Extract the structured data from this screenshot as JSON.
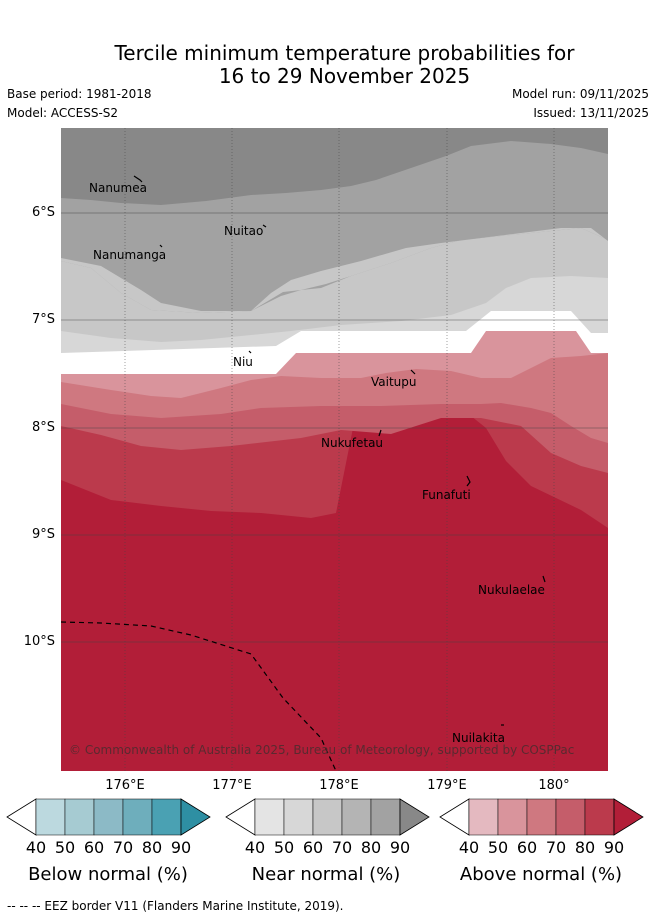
{
  "title_line1": "Tercile minimum temperature probabilities for",
  "title_line2": "16 to 29 November 2025",
  "base_period": "Base period: 1981-2018",
  "model": "Model: ACCESS-S2",
  "model_run": "Model run: 09/11/2025",
  "issued": "Issued: 13/11/2025",
  "lat_labels": [
    "6°S",
    "7°S",
    "8°S",
    "9°S",
    "10°S"
  ],
  "lon_labels": [
    "176°E",
    "177°E",
    "178°E",
    "179°E",
    "180°"
  ],
  "places": [
    "Nanumea",
    "Nuitao",
    "Nanumanga",
    "Niu",
    "Vaitupu",
    "Nukufetau",
    "Funafuti",
    "Nukulaelae",
    "Nuilakita"
  ],
  "copyright": "© Commonwealth of Australia 2025, Bureau of Meteorology, supported by COSPPac",
  "colorbars": [
    {
      "label": "Below normal (%)",
      "ticks": [
        "40",
        "50",
        "60",
        "70",
        "80",
        "90"
      ],
      "colors": [
        "#ffffff",
        "#bcd9df",
        "#a6cbd2",
        "#8cbac6",
        "#6eaebc",
        "#4aa1b3",
        "#2e8fa3"
      ]
    },
    {
      "label": "Near normal (%)",
      "ticks": [
        "40",
        "50",
        "60",
        "70",
        "80",
        "90"
      ],
      "colors": [
        "#ffffff",
        "#e4e4e4",
        "#d7d7d7",
        "#c7c7c7",
        "#b4b4b4",
        "#a2a2a2",
        "#888888"
      ]
    },
    {
      "label": "Above normal (%)",
      "ticks": [
        "40",
        "50",
        "60",
        "70",
        "80",
        "90"
      ],
      "colors": [
        "#ffffff",
        "#e4b9c0",
        "#d9949c",
        "#cf7880",
        "#c55d6a",
        "#bb3a4c",
        "#b21e38"
      ]
    }
  ],
  "footer": "--  --  -- EEZ border V11 (Flanders Marine Institute, 2019)."
}
